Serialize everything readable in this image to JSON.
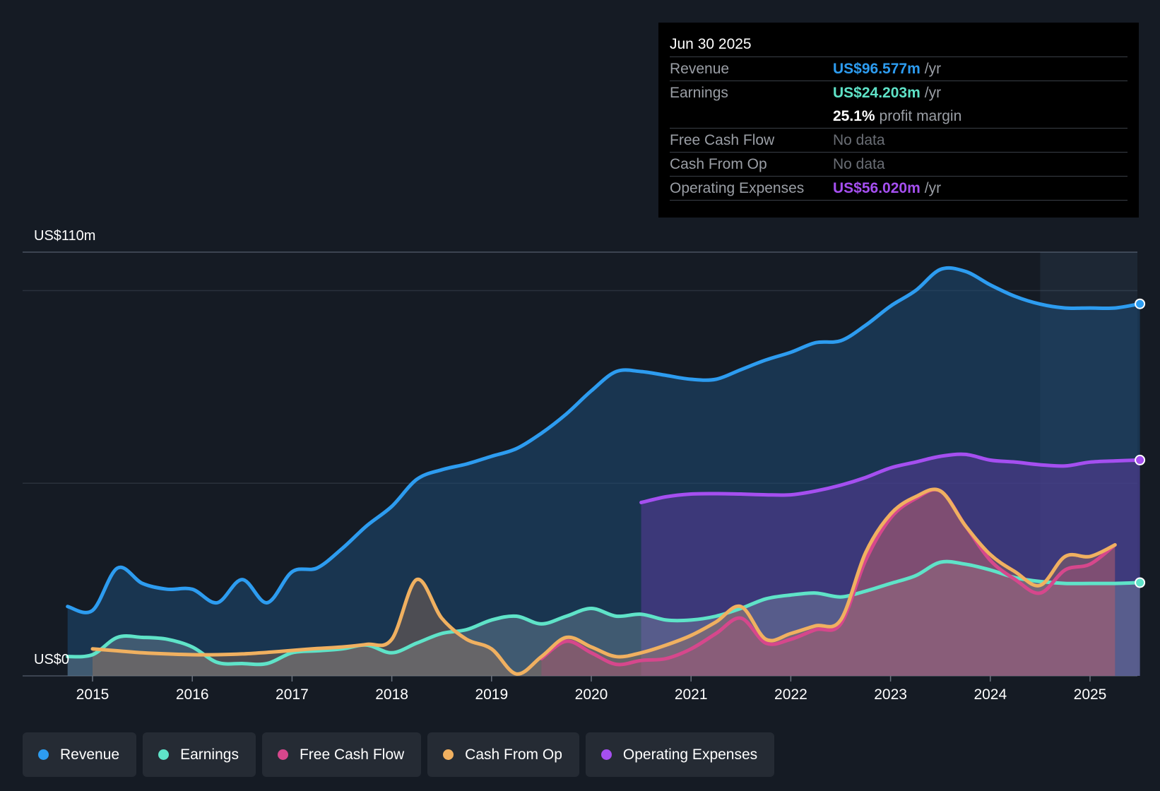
{
  "chart_data": {
    "type": "area",
    "y_label_top": "US$110m",
    "y_label_bottom": "US$0",
    "ylim": [
      0,
      110
    ],
    "xlim": [
      2014.5,
      2025.5
    ],
    "x_ticks": [
      "2015",
      "2016",
      "2017",
      "2018",
      "2019",
      "2020",
      "2021",
      "2022",
      "2023",
      "2024",
      "2025"
    ],
    "series": [
      {
        "name": "Revenue",
        "color": "#2d9cf0",
        "points": [
          [
            2014.75,
            18
          ],
          [
            2015.0,
            17
          ],
          [
            2015.25,
            28
          ],
          [
            2015.5,
            24
          ],
          [
            2015.75,
            22.5
          ],
          [
            2016.0,
            22.5
          ],
          [
            2016.25,
            19
          ],
          [
            2016.5,
            25
          ],
          [
            2016.75,
            19
          ],
          [
            2017.0,
            27
          ],
          [
            2017.25,
            28
          ],
          [
            2017.5,
            33
          ],
          [
            2017.75,
            39
          ],
          [
            2018.0,
            44
          ],
          [
            2018.25,
            51
          ],
          [
            2018.5,
            53.5
          ],
          [
            2018.75,
            55
          ],
          [
            2019.0,
            57
          ],
          [
            2019.25,
            59
          ],
          [
            2019.5,
            63
          ],
          [
            2019.75,
            68
          ],
          [
            2020.0,
            74
          ],
          [
            2020.25,
            79
          ],
          [
            2020.5,
            79
          ],
          [
            2020.75,
            78
          ],
          [
            2021.0,
            77
          ],
          [
            2021.25,
            77
          ],
          [
            2021.5,
            79.5
          ],
          [
            2021.75,
            82
          ],
          [
            2022.0,
            84
          ],
          [
            2022.25,
            86.5
          ],
          [
            2022.5,
            87
          ],
          [
            2022.75,
            91
          ],
          [
            2023.0,
            96
          ],
          [
            2023.25,
            100
          ],
          [
            2023.5,
            105.5
          ],
          [
            2023.75,
            105
          ],
          [
            2024.0,
            101.5
          ],
          [
            2024.25,
            98.5
          ],
          [
            2024.5,
            96.5
          ],
          [
            2024.75,
            95.5
          ],
          [
            2025.0,
            95.5
          ],
          [
            2025.25,
            95.5
          ],
          [
            2025.5,
            96.577
          ]
        ]
      },
      {
        "name": "Earnings",
        "color": "#5fe3c8",
        "points": [
          [
            2014.75,
            5
          ],
          [
            2015.0,
            5.5
          ],
          [
            2015.25,
            10
          ],
          [
            2015.5,
            10
          ],
          [
            2015.75,
            9.5
          ],
          [
            2016.0,
            7.5
          ],
          [
            2016.25,
            3.5
          ],
          [
            2016.5,
            3.2
          ],
          [
            2016.75,
            3.2
          ],
          [
            2017.0,
            6
          ],
          [
            2017.25,
            6.5
          ],
          [
            2017.5,
            7
          ],
          [
            2017.75,
            8
          ],
          [
            2018.0,
            6
          ],
          [
            2018.25,
            8.5
          ],
          [
            2018.5,
            11
          ],
          [
            2018.75,
            12
          ],
          [
            2019.0,
            14.5
          ],
          [
            2019.25,
            15.5
          ],
          [
            2019.5,
            13.5
          ],
          [
            2019.75,
            15.5
          ],
          [
            2020.0,
            17.5
          ],
          [
            2020.25,
            15.5
          ],
          [
            2020.5,
            16
          ],
          [
            2020.75,
            14.5
          ],
          [
            2021.0,
            14.5
          ],
          [
            2021.25,
            15.5
          ],
          [
            2021.5,
            17.5
          ],
          [
            2021.75,
            20
          ],
          [
            2022.0,
            21
          ],
          [
            2022.25,
            21.5
          ],
          [
            2022.5,
            20.5
          ],
          [
            2022.75,
            22
          ],
          [
            2023.0,
            24
          ],
          [
            2023.25,
            26
          ],
          [
            2023.5,
            29.5
          ],
          [
            2023.75,
            29
          ],
          [
            2024.0,
            27.5
          ],
          [
            2024.25,
            25.5
          ],
          [
            2024.5,
            24.5
          ],
          [
            2024.75,
            24
          ],
          [
            2025.0,
            24
          ],
          [
            2025.25,
            24
          ],
          [
            2025.5,
            24.203
          ]
        ]
      },
      {
        "name": "Free Cash Flow",
        "color": "#d6478c",
        "points": [
          [
            2019.5,
            4.5
          ],
          [
            2019.75,
            9
          ],
          [
            2020.0,
            6
          ],
          [
            2020.25,
            3
          ],
          [
            2020.5,
            4
          ],
          [
            2020.75,
            4.5
          ],
          [
            2021.0,
            7
          ],
          [
            2021.25,
            11
          ],
          [
            2021.5,
            15
          ],
          [
            2021.75,
            8.5
          ],
          [
            2022.0,
            9.5
          ],
          [
            2022.25,
            12
          ],
          [
            2022.5,
            13.5
          ],
          [
            2022.75,
            30
          ],
          [
            2023.0,
            41
          ],
          [
            2023.25,
            46
          ],
          [
            2023.5,
            48
          ],
          [
            2023.75,
            39
          ],
          [
            2024.0,
            30
          ],
          [
            2024.25,
            25
          ],
          [
            2024.5,
            21.5
          ],
          [
            2024.75,
            27.5
          ],
          [
            2025.0,
            29
          ],
          [
            2025.25,
            34
          ]
        ]
      },
      {
        "name": "Cash From Op",
        "color": "#f0b060",
        "points": [
          [
            2015.0,
            7
          ],
          [
            2015.25,
            6.5
          ],
          [
            2015.5,
            6
          ],
          [
            2015.75,
            5.7
          ],
          [
            2016.0,
            5.5
          ],
          [
            2016.25,
            5.5
          ],
          [
            2016.5,
            5.7
          ],
          [
            2016.75,
            6.1
          ],
          [
            2017.0,
            6.6
          ],
          [
            2017.25,
            7.1
          ],
          [
            2017.5,
            7.5
          ],
          [
            2017.75,
            8.2
          ],
          [
            2018.0,
            9.5
          ],
          [
            2018.25,
            25
          ],
          [
            2018.5,
            15
          ],
          [
            2018.75,
            9.5
          ],
          [
            2019.0,
            7
          ],
          [
            2019.25,
            0.5
          ],
          [
            2019.5,
            5
          ],
          [
            2019.75,
            10
          ],
          [
            2020.0,
            7.5
          ],
          [
            2020.25,
            5
          ],
          [
            2020.5,
            6
          ],
          [
            2020.75,
            8
          ],
          [
            2021.0,
            10.5
          ],
          [
            2021.25,
            14
          ],
          [
            2021.5,
            18
          ],
          [
            2021.75,
            9.5
          ],
          [
            2022.0,
            11
          ],
          [
            2022.25,
            13
          ],
          [
            2022.5,
            14.5
          ],
          [
            2022.75,
            32
          ],
          [
            2023.0,
            42
          ],
          [
            2023.25,
            46.5
          ],
          [
            2023.5,
            48
          ],
          [
            2023.75,
            39
          ],
          [
            2024.0,
            31.5
          ],
          [
            2024.25,
            27
          ],
          [
            2024.5,
            23.5
          ],
          [
            2024.75,
            31
          ],
          [
            2025.0,
            31
          ],
          [
            2025.25,
            34
          ]
        ]
      },
      {
        "name": "Operating Expenses",
        "color": "#a54ff0",
        "points": [
          [
            2020.5,
            45
          ],
          [
            2020.75,
            46.5
          ],
          [
            2021.0,
            47.2
          ],
          [
            2021.25,
            47.3
          ],
          [
            2021.5,
            47.2
          ],
          [
            2021.75,
            47
          ],
          [
            2022.0,
            47
          ],
          [
            2022.25,
            48
          ],
          [
            2022.5,
            49.5
          ],
          [
            2022.75,
            51.5
          ],
          [
            2023.0,
            54
          ],
          [
            2023.25,
            55.5
          ],
          [
            2023.5,
            57
          ],
          [
            2023.75,
            57.5
          ],
          [
            2024.0,
            56
          ],
          [
            2024.25,
            55.5
          ],
          [
            2024.5,
            54.8
          ],
          [
            2024.75,
            54.5
          ],
          [
            2025.0,
            55.5
          ],
          [
            2025.25,
            55.8
          ],
          [
            2025.5,
            56.02
          ]
        ]
      }
    ],
    "highlight_from_x": 2024.5
  },
  "tooltip": {
    "date": "Jun 30 2025",
    "revenue_label": "Revenue",
    "revenue_value": "US$96.577m",
    "earnings_label": "Earnings",
    "earnings_value": "US$24.203m",
    "unit": "/yr",
    "margin_value": "25.1%",
    "margin_text": "profit margin",
    "fcf_label": "Free Cash Flow",
    "fcf_value": "No data",
    "cfo_label": "Cash From Op",
    "cfo_value": "No data",
    "opex_label": "Operating Expenses",
    "opex_value": "US$56.020m",
    "colors": {
      "revenue": "#2d9cf0",
      "earnings": "#5fe3c8",
      "opex": "#a54ff0"
    }
  },
  "legend": [
    {
      "label": "Revenue",
      "color": "#2d9cf0"
    },
    {
      "label": "Earnings",
      "color": "#5fe3c8"
    },
    {
      "label": "Free Cash Flow",
      "color": "#d6478c"
    },
    {
      "label": "Cash From Op",
      "color": "#f0b060"
    },
    {
      "label": "Operating Expenses",
      "color": "#a54ff0"
    }
  ]
}
